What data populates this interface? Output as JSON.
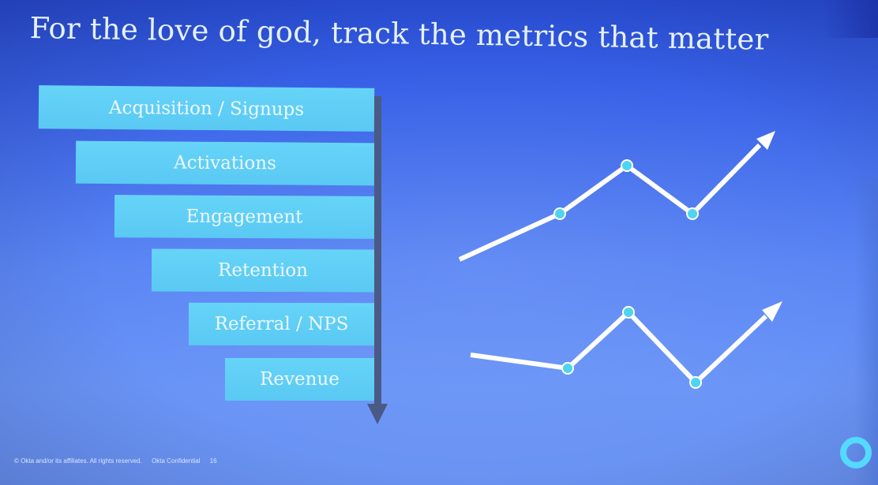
{
  "slide": {
    "title": "For the love of god, track the metrics that matter",
    "funnel": [
      {
        "label": "Acquisition / Signups"
      },
      {
        "label": "Activations"
      },
      {
        "label": "Engagement"
      },
      {
        "label": "Retention"
      },
      {
        "label": "Referral / NPS"
      },
      {
        "label": "Revenue"
      }
    ],
    "footer": {
      "copyright": "© Okta and/or its affiliates. All rights reserved.",
      "confidential": "Okta Confidential",
      "page_number": "16"
    },
    "colors": {
      "background": "#4a74ee",
      "funnel_bar": "#5fcdf5",
      "arrow": "#4a5a84",
      "line": "#ffffff",
      "dot": "#4fd3f0",
      "logo": "#54d9ff"
    },
    "icons": {
      "logo": "okta-ring-logo"
    }
  }
}
